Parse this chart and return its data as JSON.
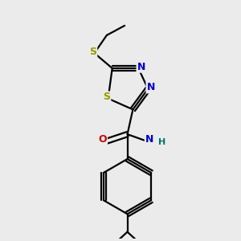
{
  "bg_color": "#ebebeb",
  "atom_colors": {
    "C": "#000000",
    "N": "#0000cc",
    "S_ring": "#999900",
    "S_ext": "#999900",
    "O": "#cc0000",
    "H": "#007070"
  },
  "bond_color": "#000000",
  "bond_width": 1.6,
  "dbo": 0.018
}
